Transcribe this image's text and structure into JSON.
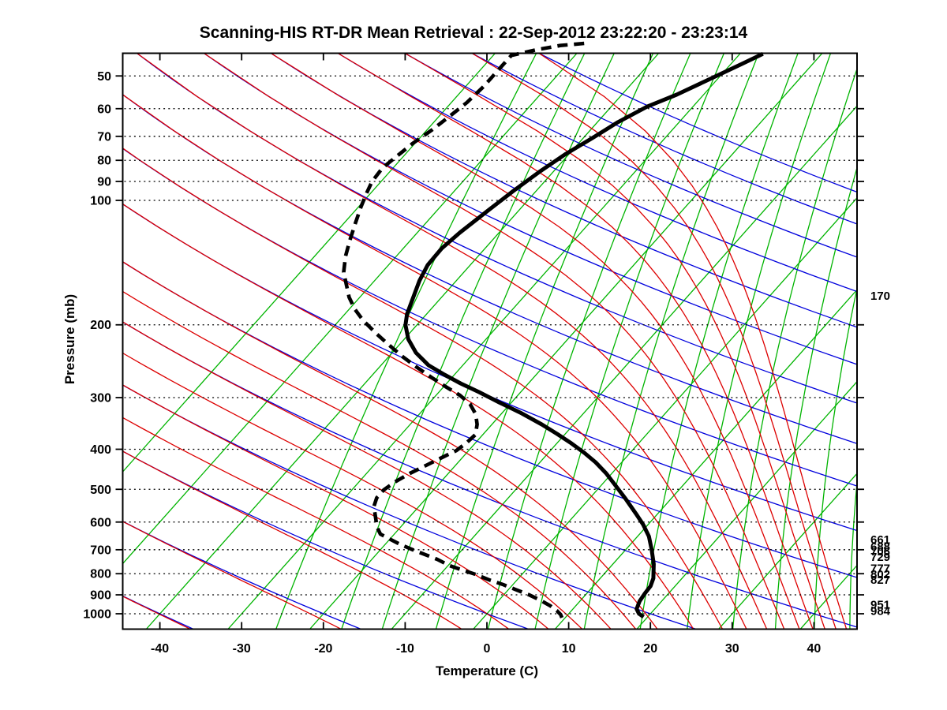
{
  "chart_data": {
    "type": "line",
    "subtype": "skew_t_log_p_sounding",
    "title": "Scanning-HIS RT-DR Mean Retrieval : 22-Sep-2012 23:22:20 - 23:23:14",
    "x_label": "Temperature (C)",
    "y_label": "Pressure (mb)",
    "x_ticks_C": [
      -40,
      -30,
      -20,
      -10,
      0,
      10,
      20,
      30,
      40
    ],
    "pressure_ticks_mb": [
      50,
      60,
      70,
      80,
      90,
      100,
      200,
      300,
      400,
      500,
      600,
      700,
      800,
      900,
      1000
    ],
    "pressure_range_mb": [
      44.2,
      1087
    ],
    "temp_axis_range_C": [
      -44.6,
      45.3
    ],
    "skew_C_per_decade": 45,
    "grid": "dotted horizontal isobars",
    "legend_position": "none",
    "right_pressure_labels_mb": [
      170,
      661,
      688,
      706,
      729,
      777,
      802,
      827,
      951,
      984
    ],
    "background_lines": {
      "isotherms_C": [
        -60,
        -50,
        -40,
        -30,
        -20,
        -10,
        0,
        10,
        20,
        30,
        40
      ],
      "mixing_ratio_g_kg": [
        0.5,
        1,
        1.5,
        2.5,
        4,
        6,
        9,
        14,
        20,
        28,
        38,
        50,
        64
      ],
      "dry_adiabats_theta_C": [
        -40,
        -20,
        0,
        20,
        40,
        60,
        80,
        100,
        120,
        140,
        160,
        180,
        200,
        220,
        240,
        260
      ],
      "pseudo_adiabats_theta_e_C": [
        -40,
        -20,
        0,
        10,
        20,
        30,
        40,
        50,
        60,
        80,
        100,
        120,
        140,
        160,
        180,
        200,
        220,
        240,
        260
      ],
      "isotherm_color": "#00b400",
      "mixing_ratio_color": "#00b400",
      "dry_adiabat_color": "#0000dd",
      "pseudo_adiabat_color": "#dd0000",
      "isobar_color": "#000000"
    },
    "series": [
      {
        "name": "temperature",
        "style": "solid",
        "color": "#000000",
        "points_p_T": [
          [
            44.2,
            -27.2
          ],
          [
            46.8,
            -28.7
          ],
          [
            50.8,
            -30.9
          ],
          [
            55.5,
            -33.3
          ],
          [
            59.3,
            -35.6
          ],
          [
            64.7,
            -37.5
          ],
          [
            70.7,
            -38.9
          ],
          [
            77.2,
            -40.4
          ],
          [
            85.4,
            -41.7
          ],
          [
            94.9,
            -42.8
          ],
          [
            106.3,
            -43.8
          ],
          [
            119.7,
            -44.8
          ],
          [
            130.7,
            -45.3
          ],
          [
            143.4,
            -45.2
          ],
          [
            156.5,
            -44.5
          ],
          [
            172.4,
            -43.4
          ],
          [
            188.3,
            -42.4
          ],
          [
            200.2,
            -41.4
          ],
          [
            216.7,
            -39.5
          ],
          [
            233.6,
            -37.1
          ],
          [
            250.5,
            -34.2
          ],
          [
            264.1,
            -31.2
          ],
          [
            277.2,
            -28.3
          ],
          [
            290.9,
            -25.1
          ],
          [
            308.1,
            -21.5
          ],
          [
            326.2,
            -17.8
          ],
          [
            348.4,
            -13.9
          ],
          [
            367.2,
            -11.0
          ],
          [
            387.2,
            -8.2
          ],
          [
            408.1,
            -5.6
          ],
          [
            430.1,
            -3.2
          ],
          [
            457.4,
            -0.7
          ],
          [
            488.6,
            1.7
          ],
          [
            526.5,
            4.4
          ],
          [
            572.1,
            7.3
          ],
          [
            608.5,
            9.4
          ],
          [
            650.1,
            11.4
          ],
          [
            700.6,
            13.2
          ],
          [
            758.3,
            15.0
          ],
          [
            820.8,
            16.5
          ],
          [
            857.4,
            17.0
          ],
          [
            892.0,
            17.1
          ],
          [
            932.1,
            17.3
          ],
          [
            974.0,
            17.8
          ],
          [
            1000.0,
            18.6
          ],
          [
            1017.7,
            19.5
          ]
        ]
      },
      {
        "name": "dew_point",
        "style": "dashed",
        "color": "#000000",
        "points_p_T": [
          [
            41.7,
            -50.2
          ],
          [
            42.2,
            -52.9
          ],
          [
            43.2,
            -55.3
          ],
          [
            44.6,
            -57.8
          ],
          [
            48.0,
            -57.8
          ],
          [
            53.1,
            -57.8
          ],
          [
            58.0,
            -58.1
          ],
          [
            62.5,
            -58.7
          ],
          [
            67.6,
            -59.4
          ],
          [
            72.9,
            -60.3
          ],
          [
            78.9,
            -60.9
          ],
          [
            83.5,
            -61.3
          ],
          [
            90.0,
            -61.1
          ],
          [
            96.1,
            -60.5
          ],
          [
            103.6,
            -59.7
          ],
          [
            113.6,
            -58.6
          ],
          [
            125.1,
            -57.4
          ],
          [
            136.6,
            -56.2
          ],
          [
            149.2,
            -54.7
          ],
          [
            171.6,
            -51.3
          ],
          [
            183.4,
            -49.3
          ],
          [
            195.0,
            -47.1
          ],
          [
            210.1,
            -44.0
          ],
          [
            223.5,
            -41.3
          ],
          [
            238.8,
            -38.3
          ],
          [
            252.8,
            -35.5
          ],
          [
            267.6,
            -32.6
          ],
          [
            282.1,
            -29.8
          ],
          [
            296.1,
            -27.1
          ],
          [
            310.8,
            -24.9
          ],
          [
            329.0,
            -23.1
          ],
          [
            348.4,
            -21.8
          ],
          [
            368.8,
            -20.9
          ],
          [
            385.5,
            -21.1
          ],
          [
            402.8,
            -21.5
          ],
          [
            419.0,
            -22.5
          ],
          [
            437.7,
            -23.6
          ],
          [
            457.4,
            -24.7
          ],
          [
            480.1,
            -25.6
          ],
          [
            501.6,
            -26.1
          ],
          [
            524.2,
            -26.1
          ],
          [
            550.2,
            -25.5
          ],
          [
            574.7,
            -24.5
          ],
          [
            616.6,
            -22.9
          ],
          [
            641.6,
            -21.7
          ],
          [
            658.8,
            -20.1
          ],
          [
            679.1,
            -18.2
          ],
          [
            700.6,
            -16.0
          ],
          [
            719.3,
            -14.0
          ],
          [
            738.6,
            -12.0
          ],
          [
            765.0,
            -9.8
          ],
          [
            785.4,
            -7.6
          ],
          [
            802.7,
            -5.7
          ],
          [
            828.1,
            -3.4
          ],
          [
            850.0,
            -1.2
          ],
          [
            873.0,
            0.8
          ],
          [
            900.0,
            3.1
          ],
          [
            928.0,
            5.1
          ],
          [
            956.9,
            6.9
          ],
          [
            982.6,
            8.2
          ],
          [
            1004.4,
            9.1
          ],
          [
            1022.2,
            9.6
          ]
        ]
      }
    ]
  }
}
